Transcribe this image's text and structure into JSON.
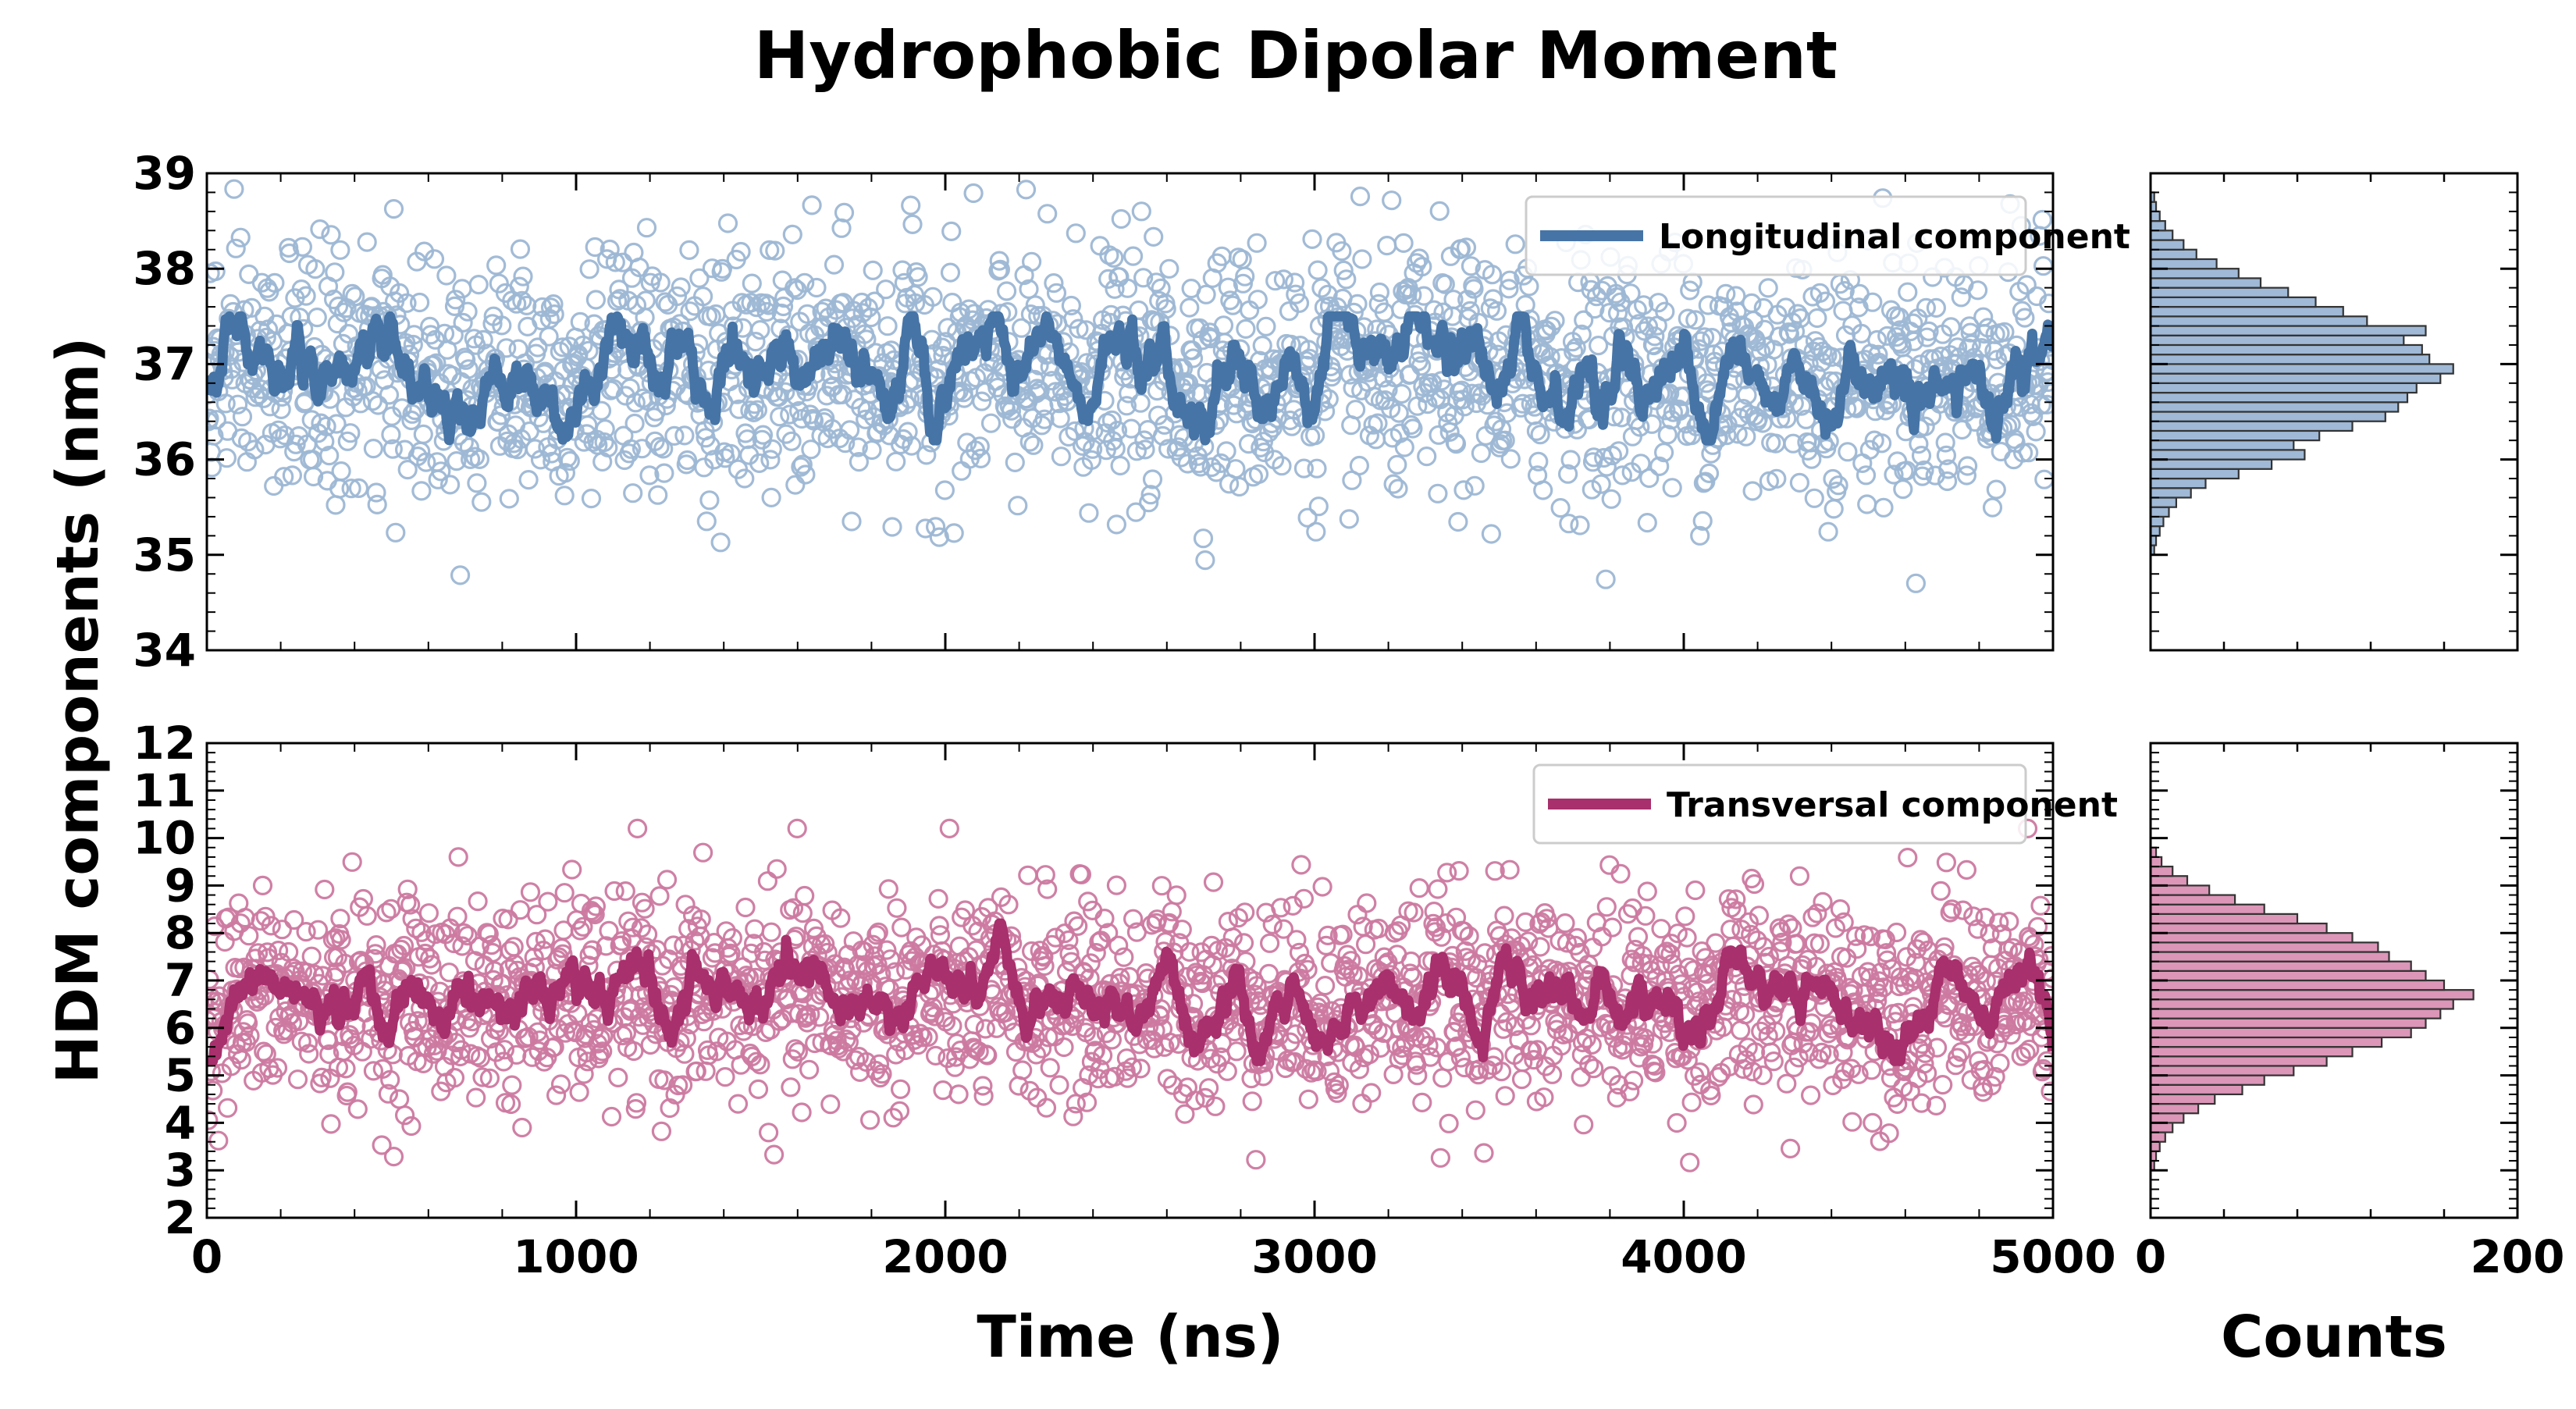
{
  "figure": {
    "title": "Hydrophobic Dipolar Moment",
    "ylabel": "HDM components (nm)",
    "xlabel": "Time (ns)",
    "hist_xlabel": "Counts"
  },
  "colors": {
    "longitudinal_line": "#4674a6",
    "longitudinal_marker": "#9db7d4",
    "longitudinal_hist": "#9fb9d7",
    "transversal_line": "#a8306c",
    "transversal_marker": "#cc79a0",
    "transversal_hist": "#dc96b8"
  },
  "chart_data": [
    {
      "type": "scatter",
      "panel": "top-time-series",
      "legend": [
        "Longitudinal component"
      ],
      "legend_position": "top-right",
      "xlim": [
        0,
        5000
      ],
      "ylim": [
        34,
        39
      ],
      "x_ticks": [
        0,
        1000,
        2000,
        3000,
        4000,
        5000
      ],
      "y_ticks": [
        34,
        35,
        36,
        37,
        38,
        39
      ],
      "y_tick_labels": [
        "34",
        "35",
        "36",
        "37",
        "38",
        "39"
      ],
      "grid": false,
      "series": [
        {
          "name": "Longitudinal component",
          "kind": "scatter+moving-average",
          "x_range": [
            0,
            5000
          ],
          "n_points": 2000,
          "mean": 36.9,
          "std": 0.65,
          "min": 34.7,
          "max": 38.9,
          "moving_average_mean": 36.9,
          "moving_average_range": [
            36.2,
            37.5
          ]
        }
      ]
    },
    {
      "type": "scatter",
      "panel": "bottom-time-series",
      "legend": [
        "Transversal component"
      ],
      "legend_position": "top-right",
      "xlim": [
        0,
        5000
      ],
      "ylim": [
        2,
        12
      ],
      "x_ticks": [
        0,
        1000,
        2000,
        3000,
        4000,
        5000
      ],
      "x_tick_labels": [
        "0",
        "1000",
        "2000",
        "3000",
        "4000",
        "5000"
      ],
      "y_ticks": [
        2,
        3,
        4,
        5,
        6,
        7,
        8,
        9,
        10,
        11,
        12
      ],
      "y_tick_labels": [
        "2",
        "3",
        "4",
        "5",
        "6",
        "7",
        "8",
        "9",
        "10",
        "11",
        "12"
      ],
      "grid": false,
      "series": [
        {
          "name": "Transversal component",
          "kind": "scatter+moving-average",
          "x_range": [
            0,
            5000
          ],
          "n_points": 2000,
          "mean": 6.6,
          "std": 1.1,
          "min": 2.8,
          "max": 10.2,
          "moving_average_mean": 6.6,
          "moving_average_range": [
            5.3,
            8.2
          ]
        }
      ]
    },
    {
      "type": "bar",
      "orientation": "horizontal",
      "panel": "top-histogram",
      "xlim": [
        0,
        200
      ],
      "ylim": [
        34,
        39
      ],
      "bin_width": 0.1,
      "bins": [
        [
          35.0,
          2
        ],
        [
          35.1,
          3
        ],
        [
          35.2,
          5
        ],
        [
          35.3,
          7
        ],
        [
          35.4,
          10
        ],
        [
          35.5,
          14
        ],
        [
          35.6,
          22
        ],
        [
          35.7,
          30
        ],
        [
          35.8,
          48
        ],
        [
          35.9,
          66
        ],
        [
          36.0,
          84
        ],
        [
          36.1,
          78
        ],
        [
          36.2,
          92
        ],
        [
          36.3,
          110
        ],
        [
          36.4,
          128
        ],
        [
          36.5,
          135
        ],
        [
          36.6,
          140
        ],
        [
          36.7,
          145
        ],
        [
          36.8,
          158
        ],
        [
          36.9,
          165
        ],
        [
          37.0,
          152
        ],
        [
          37.1,
          148
        ],
        [
          37.2,
          138
        ],
        [
          37.3,
          150
        ],
        [
          37.4,
          118
        ],
        [
          37.5,
          105
        ],
        [
          37.6,
          90
        ],
        [
          37.7,
          75
        ],
        [
          37.8,
          60
        ],
        [
          37.9,
          48
        ],
        [
          38.0,
          36
        ],
        [
          38.1,
          25
        ],
        [
          38.2,
          18
        ],
        [
          38.3,
          12
        ],
        [
          38.4,
          8
        ],
        [
          38.5,
          5
        ],
        [
          38.6,
          3
        ],
        [
          38.7,
          2
        ]
      ]
    },
    {
      "type": "bar",
      "orientation": "horizontal",
      "panel": "bottom-histogram",
      "xlim": [
        0,
        200
      ],
      "x_ticks": [
        0,
        200
      ],
      "x_tick_labels": [
        "0",
        "200"
      ],
      "ylim": [
        2,
        12
      ],
      "bin_width": 0.2,
      "bins": [
        [
          3.0,
          2
        ],
        [
          3.2,
          3
        ],
        [
          3.4,
          5
        ],
        [
          3.6,
          8
        ],
        [
          3.8,
          12
        ],
        [
          4.0,
          18
        ],
        [
          4.2,
          26
        ],
        [
          4.4,
          35
        ],
        [
          4.6,
          50
        ],
        [
          4.8,
          62
        ],
        [
          5.0,
          78
        ],
        [
          5.2,
          96
        ],
        [
          5.4,
          110
        ],
        [
          5.6,
          126
        ],
        [
          5.8,
          142
        ],
        [
          6.0,
          150
        ],
        [
          6.2,
          158
        ],
        [
          6.4,
          165
        ],
        [
          6.6,
          176
        ],
        [
          6.8,
          160
        ],
        [
          7.0,
          150
        ],
        [
          7.2,
          142
        ],
        [
          7.4,
          130
        ],
        [
          7.6,
          124
        ],
        [
          7.8,
          110
        ],
        [
          8.0,
          96
        ],
        [
          8.2,
          80
        ],
        [
          8.4,
          62
        ],
        [
          8.6,
          46
        ],
        [
          8.8,
          32
        ],
        [
          9.0,
          20
        ],
        [
          9.2,
          12
        ],
        [
          9.4,
          6
        ],
        [
          9.6,
          3
        ]
      ]
    }
  ]
}
